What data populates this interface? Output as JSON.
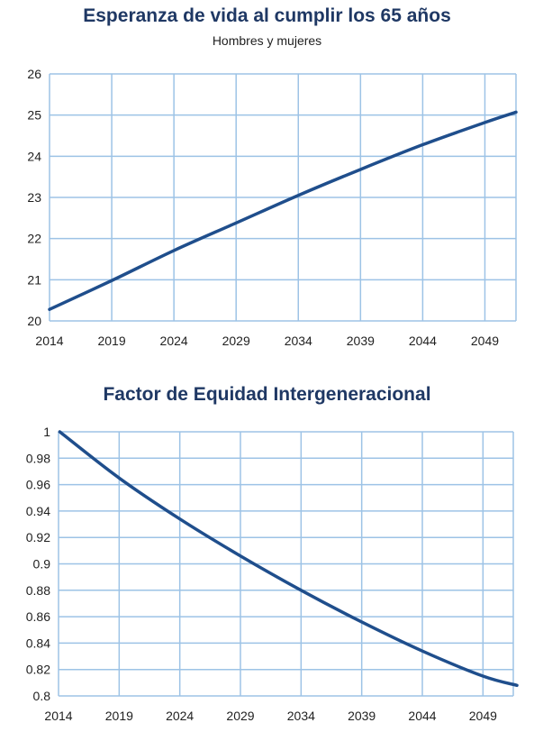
{
  "chart_data": [
    {
      "type": "line",
      "title": "Esperanza de vida al cumplir los 65 años",
      "subtitle": "Hombres y mujeres",
      "xlabel": "",
      "ylabel": "",
      "x_ticks": [
        "2014",
        "2019",
        "2024",
        "2029",
        "2034",
        "2039",
        "2044",
        "2049"
      ],
      "y_ticks": [
        "20",
        "21",
        "22",
        "23",
        "24",
        "25",
        "26"
      ],
      "xlim": [
        2014,
        2051.5
      ],
      "ylim": [
        20,
        26
      ],
      "grid": true,
      "line_color": "#1f4e8c",
      "grid_color": "#9dc3e6",
      "series": [
        {
          "x": [
            2014,
            2019,
            2024,
            2029,
            2034,
            2039,
            2044,
            2049,
            2051.5
          ],
          "y": [
            20.28,
            20.98,
            21.71,
            22.38,
            23.05,
            23.68,
            24.28,
            24.82,
            25.07
          ]
        }
      ]
    },
    {
      "type": "line",
      "title": "Factor de Equidad Intergeneracional",
      "xlabel": "",
      "ylabel": "",
      "x_ticks": [
        "2014",
        "2019",
        "2024",
        "2029",
        "2034",
        "2039",
        "2044",
        "2049"
      ],
      "y_ticks": [
        "0.8",
        "0.82",
        "0.84",
        "0.86",
        "0.88",
        "0.9",
        "0.92",
        "0.94",
        "0.96",
        "0.98",
        "1"
      ],
      "xlim": [
        2014,
        2051.5
      ],
      "ylim": [
        0.8,
        1.0
      ],
      "grid": true,
      "line_color": "#1f4e8c",
      "grid_color": "#9dc3e6",
      "series": [
        {
          "x": [
            2014.1,
            2019,
            2024,
            2029,
            2034,
            2039,
            2044,
            2049,
            2051.8
          ],
          "y": [
            1.0,
            0.965,
            0.934,
            0.906,
            0.88,
            0.856,
            0.834,
            0.815,
            0.808
          ]
        }
      ]
    }
  ]
}
